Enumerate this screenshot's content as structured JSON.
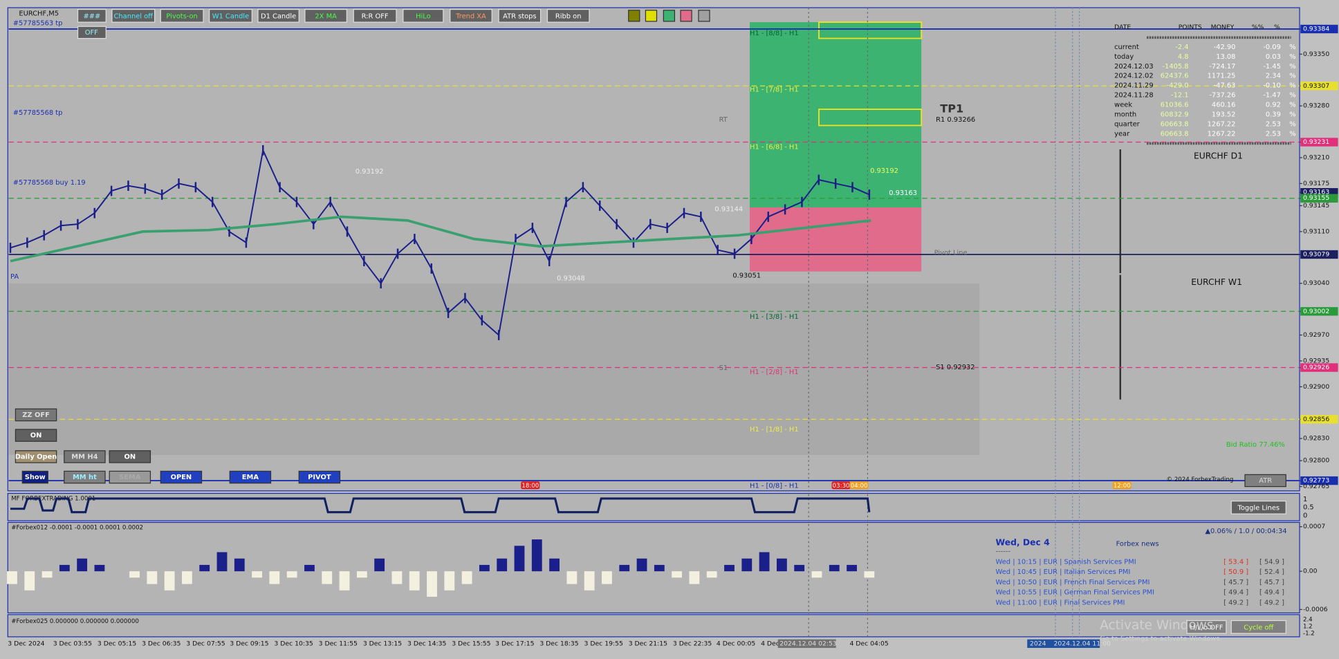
{
  "window": {
    "symbol": "EURCHF,M5"
  },
  "toolbar": [
    "###",
    "Channel off",
    "Pivots-on",
    "W1 Candle",
    "D1 Candle",
    "2X MA",
    "R:R OFF",
    "HiLo",
    "Trend XA",
    "ATR stops",
    "Ribb on"
  ],
  "toolbar_second_row": "OFF",
  "left_buttons": {
    "zz": "ZZ OFF",
    "zz_on": "ON",
    "daily_open": "Daily Open",
    "mm_h4": "MM H4",
    "mm_on": "ON",
    "show": "Show",
    "mm_ht": "MM ht",
    "sema": "SEMA",
    "open": "OPEN",
    "ema": "EMA",
    "pivot": "PIVOT"
  },
  "price_axis": [
    {
      "value": 0.93384,
      "label": "0.93384",
      "color": "#1a2fb0",
      "line": "solid"
    },
    {
      "value": 0.9335,
      "label": "0.93350"
    },
    {
      "value": 0.93307,
      "label": "0.93307",
      "color": "#e8e030",
      "line": "dash"
    },
    {
      "value": 0.9328,
      "label": "0.93280"
    },
    {
      "value": 0.93231,
      "label": "0.93231",
      "color": "#e0307a",
      "line": "dash"
    },
    {
      "value": 0.9321,
      "label": "0.93210"
    },
    {
      "value": 0.93175,
      "label": "0.93175"
    },
    {
      "value": 0.93163,
      "label": "0.93163",
      "color": "#1b1f5e"
    },
    {
      "value": 0.93155,
      "label": "0.93155",
      "color": "#2a9a3a",
      "line": "dash"
    },
    {
      "value": 0.93145,
      "label": "0.93145"
    },
    {
      "value": 0.9311,
      "label": "0.93110"
    },
    {
      "value": 0.93079,
      "label": "0.93079",
      "color": "#1b1f5e",
      "line": "solid"
    },
    {
      "value": 0.9304,
      "label": "0.93040"
    },
    {
      "value": 0.93002,
      "label": "0.93002",
      "color": "#2a9a3a",
      "line": "dash"
    },
    {
      "value": 0.9297,
      "label": "0.92970"
    },
    {
      "value": 0.92935,
      "label": "0.92935"
    },
    {
      "value": 0.92926,
      "label": "0.92926",
      "color": "#e0307a",
      "line": "dash"
    },
    {
      "value": 0.929,
      "label": "0.92900"
    },
    {
      "value": 0.92856,
      "label": "0.92856",
      "color": "#e8e030",
      "line": "dash"
    },
    {
      "value": 0.9283,
      "label": "0.92830"
    },
    {
      "value": 0.928,
      "label": "0.92800"
    },
    {
      "value": 0.92773,
      "label": "0.92773",
      "color": "#1a2fb0",
      "line": "solid"
    },
    {
      "value": 0.92765,
      "label": "0.92765"
    }
  ],
  "time_axis": [
    "3 Dec 2024",
    "3 Dec 03:55",
    "3 Dec 05:15",
    "3 Dec 06:35",
    "3 Dec 07:55",
    "3 Dec 09:15",
    "3 Dec 10:35",
    "3 Dec 11:55",
    "3 Dec 13:15",
    "3 Dec 14:35",
    "3 Dec 15:55",
    "3 Dec 17:15",
    "3 Dec 18:35",
    "3 Dec 19:55",
    "3 Dec 21:15",
    "3 Dec 22:35",
    "4 Dec 00:05",
    "4 Dec",
    "2024.12.04 02:53",
    "4 Dec 04:05"
  ],
  "time_axis_right": [
    "2024",
    "2024.12.04 11:00"
  ],
  "time_markers": [
    "18:00",
    "03:30",
    "04:00",
    "12:00"
  ],
  "close": [
    0.93088,
    0.93095,
    0.93105,
    0.93118,
    0.9312,
    0.93135,
    0.93165,
    0.93172,
    0.93168,
    0.9316,
    0.93175,
    0.9317,
    0.9315,
    0.9311,
    0.93095,
    0.9322,
    0.9317,
    0.9315,
    0.9312,
    0.9315,
    0.9311,
    0.9307,
    0.9304,
    0.9308,
    0.931,
    0.9306,
    0.93,
    0.9302,
    0.9299,
    0.9297,
    0.931,
    0.93115,
    0.9307,
    0.9315,
    0.9317,
    0.93145,
    0.9312,
    0.93095,
    0.9312,
    0.93115,
    0.93135,
    0.9313,
    0.93085,
    0.9308,
    0.931,
    0.9313,
    0.9314,
    0.9315,
    0.9318,
    0.93175,
    0.9317,
    0.9316
  ],
  "moving_average": [
    0.9307,
    0.9309,
    0.9311,
    0.93112,
    0.9312,
    0.9313,
    0.93125,
    0.931,
    0.9309,
    0.93095,
    0.931,
    0.93105,
    0.93115,
    0.93125
  ],
  "annotations": {
    "tp1_label": "#57785563 tp",
    "tp2_label": "#57785568 tp",
    "buy_label": "#57785568 buy 1.19",
    "pa": "PA",
    "tp1": "TP1",
    "r1": "R1 0.93266",
    "rt": "RT",
    "s1": "S1",
    "s1_value": "S1 0.92932",
    "pivot": "Pivot Line",
    "high_a": "0.93192",
    "low_a": "0.93048",
    "low_b": "0.93051",
    "current": "0.93163",
    "high_b": "0.93192",
    "mid": "0.93144"
  },
  "murrey": [
    "H1 - [8/8] - H1",
    "H1 - [7/8] - H1",
    "H1 - [6/8] - H1",
    "H1 - [3/8] - H1",
    "H1 - [2/8] - H1",
    "H1 - [1/8] - H1",
    "H1 - [0/8] - H1"
  ],
  "stats": {
    "header": [
      "DATE",
      "POINTS",
      "MONEY",
      "%%",
      "%"
    ],
    "rows": [
      [
        "current",
        "-2.4",
        "-42.90",
        "-0.09",
        "%"
      ],
      [
        "today",
        "4.8",
        "13.08",
        "0.03",
        "%"
      ],
      [
        "2024.12.03",
        "-1405.8",
        "-724.17",
        "-1.45",
        "%"
      ],
      [
        "2024.12.02",
        "62437.6",
        "1171.25",
        "2.34",
        "%"
      ],
      [
        "2024.11.29",
        "-429.0",
        "-47.63",
        "-0.10",
        "%"
      ],
      [
        "2024.11.28",
        "-12.1",
        "-737.26",
        "-1.47",
        "%"
      ],
      [
        "week",
        "61036.6",
        "460.16",
        "0.92",
        "%"
      ],
      [
        "month",
        "60832.9",
        "193.52",
        "0.39",
        "%"
      ],
      [
        "quarter",
        "60663.8",
        "1267.22",
        "2.53",
        "%"
      ],
      [
        "year",
        "60663.8",
        "1267.22",
        "2.53",
        "%"
      ]
    ]
  },
  "side_panel": {
    "d1": "EURCHF  D1",
    "w1": "EURCHF  W1",
    "bid_ratio": "Bid Ratio 77.46%",
    "copyright": "© 2024 ForbexTrading",
    "atr": "ATR",
    "toggle": "Toggle Lines",
    "hl": "H/L/o OFF",
    "cycle": "Cycle off"
  },
  "indicator1": {
    "title": "MF FORBEXTRADING 1.0001",
    "axis": [
      "1",
      "0.5",
      "0"
    ]
  },
  "indicator2": {
    "title": "#Forbex012 -0.0001 -0.0001 0.0001 0.0002",
    "axis": [
      {
        "value": 0.0007,
        "label": "0.0007"
      },
      {
        "value": 0,
        "label": "0.00"
      },
      {
        "value": -0.0006,
        "label": "-0.0006"
      }
    ],
    "histogram": [
      -0.0002,
      -0.0003,
      -0.0001,
      0.0001,
      0.0002,
      0.0001,
      0,
      -0.0001,
      -0.0002,
      -0.0003,
      -0.0002,
      0.0001,
      0.0003,
      0.0002,
      -0.0001,
      -0.0002,
      -0.0001,
      0.0001,
      -0.0002,
      -0.0003,
      -0.0001,
      0.0002,
      -0.0002,
      -0.0003,
      -0.0004,
      -0.0003,
      -0.0002,
      0.0001,
      0.0002,
      0.0004,
      0.0005,
      0.0002,
      -0.0002,
      -0.0003,
      -0.0002,
      0.0001,
      0.0002,
      0.0001,
      -0.0001,
      -0.0002,
      -0.0001,
      0.0001,
      0.0002,
      0.0003,
      0.0002,
      0.0001,
      -0.0001,
      0.0001,
      0.0001,
      -0.0001
    ]
  },
  "indicator3": {
    "title": "#Forbex025 0.000000 0.000000 0.000000",
    "axis": [
      "2.4",
      "1.2",
      "-1.2"
    ]
  },
  "news": {
    "date": "Wed, Dec 4",
    "title": "Forbex news",
    "status": "▲0.06% / 1.0 / 00:04:34",
    "divider": "------",
    "rows": [
      [
        "Wed  |  10:15  |  EUR  |  Spanish Services PMI",
        "[ 53.4 ]",
        "[ 54.9 ]"
      ],
      [
        "Wed  |  10:45  |  EUR  |  Italian Services PMI",
        "[ 50.9 ]",
        "[ 52.4 ]"
      ],
      [
        "Wed  |  10:50  |  EUR  |  French Final Services PMI",
        "[ 45.7 ]",
        "[ 45.7 ]"
      ],
      [
        "Wed  |  10:55  |  EUR  |  German Final Services PMI",
        "[ 49.4 ]",
        "[ 49.4 ]"
      ],
      [
        "Wed  |  11:00  |  EUR  |  Final Services PMI",
        "[ 49.2 ]",
        "[ 49.2 ]"
      ]
    ]
  },
  "watermark": {
    "title": "Activate Windows",
    "subtitle": "Go to Settings to activate Windows."
  }
}
